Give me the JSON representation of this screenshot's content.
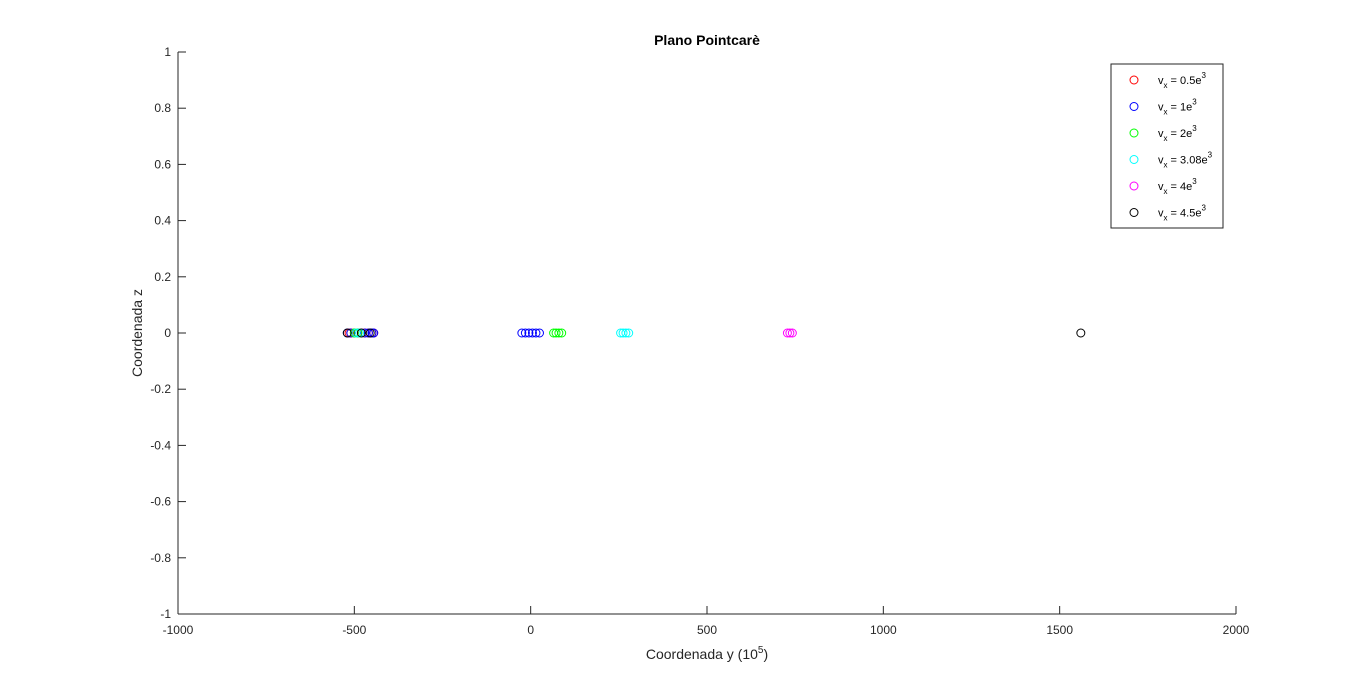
{
  "chart_data": {
    "type": "scatter",
    "title": "Plano Pointcarè",
    "xlabel": "Coordenada y (10",
    "xlabel_sup": "5",
    "xlabel_end": ")",
    "ylabel": "Coordenada z",
    "xlim": [
      -1000,
      2000
    ],
    "ylim": [
      -1,
      1
    ],
    "xticks": [
      -1000,
      -500,
      0,
      500,
      1000,
      1500,
      2000
    ],
    "xtick_labels": [
      "-1000",
      "-500",
      "0",
      "500",
      "1000",
      "1500",
      "2000"
    ],
    "yticks": [
      1,
      0.8,
      0.6,
      0.4,
      0.2,
      0,
      -0.2,
      -0.4,
      -0.6,
      -0.8,
      -1
    ],
    "ytick_labels": [
      "1",
      "0.8",
      "0.6",
      "0.4",
      "0.2",
      "0",
      "-0.2",
      "-0.4",
      "-0.6",
      "-0.8",
      "-1"
    ],
    "grid": false,
    "legend_position": "top-right",
    "series": [
      {
        "name": "v",
        "name_sub": "x",
        "name_mid": " = 0.5e",
        "name_sup": "3",
        "color": "#ff0000",
        "marker": "circle-open",
        "x": [
          -515,
          -510,
          -500,
          -490,
          -480,
          -470,
          -460,
          -450,
          -445
        ],
        "y": [
          0,
          0,
          0,
          0,
          0,
          0,
          0,
          0,
          0
        ]
      },
      {
        "name": "v",
        "name_sub": "x",
        "name_mid": " = 1e",
        "name_sup": "3",
        "color": "#0000ff",
        "marker": "circle-open",
        "x": [
          -520,
          -510,
          -470,
          -460,
          -450,
          -445,
          -25,
          -15,
          -5,
          5,
          15,
          25
        ],
        "y": [
          0,
          0,
          0,
          0,
          0,
          0,
          0,
          0,
          0,
          0,
          0,
          0
        ]
      },
      {
        "name": "v",
        "name_sub": "x",
        "name_mid": " = 2e",
        "name_sup": "3",
        "color": "#00ff00",
        "marker": "circle-open",
        "x": [
          -500,
          -490,
          65,
          72,
          80,
          88
        ],
        "y": [
          0,
          0,
          0,
          0,
          0,
          0
        ]
      },
      {
        "name": "v",
        "name_sub": "x",
        "name_mid": " = 3.08e",
        "name_sup": "3",
        "color": "#00ffff",
        "marker": "circle-open",
        "x": [
          -495,
          -485,
          255,
          262,
          270,
          278
        ],
        "y": [
          0,
          0,
          0,
          0,
          0,
          0
        ]
      },
      {
        "name": "v",
        "name_sub": "x",
        "name_mid": " = 4e",
        "name_sup": "3",
        "color": "#ff00ff",
        "marker": "circle-open",
        "x": [
          728,
          735,
          742
        ],
        "y": [
          0,
          0,
          0
        ]
      },
      {
        "name": "v",
        "name_sub": "x",
        "name_mid": " = 4.5e",
        "name_sup": "3",
        "color": "#000000",
        "marker": "circle-open",
        "x": [
          -520,
          -480,
          -455,
          1560
        ],
        "y": [
          0,
          0,
          0,
          0
        ]
      }
    ]
  }
}
